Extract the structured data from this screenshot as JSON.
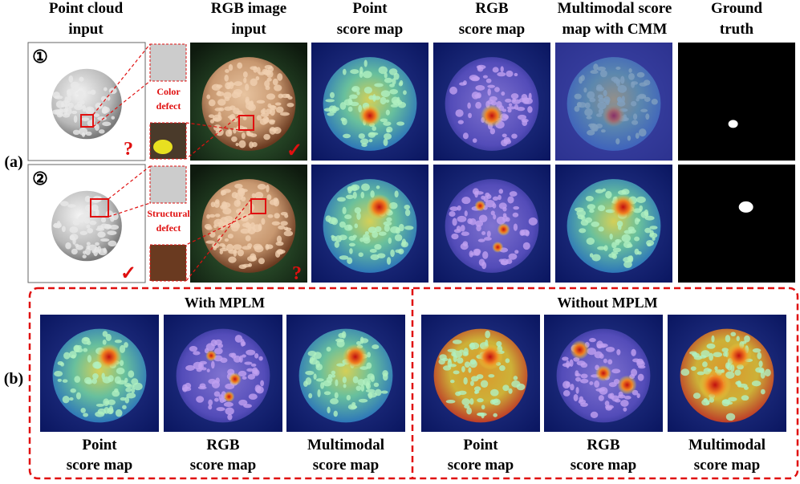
{
  "header": {
    "columns": [
      [
        "Point cloud",
        "input"
      ],
      [
        "RGB image",
        "input"
      ],
      [
        "Point",
        "score map"
      ],
      [
        "RGB",
        "score map"
      ],
      [
        "Multimodal score",
        "map with CMM"
      ],
      [
        "Ground",
        "truth"
      ]
    ]
  },
  "panel_a": {
    "label": "(a)",
    "rows": [
      {
        "index": "①",
        "defect": [
          "Color",
          "defect"
        ],
        "marks": [
          "?",
          "✓"
        ]
      },
      {
        "index": "②",
        "defect": [
          "Structural",
          "defect"
        ],
        "marks": [
          "✓",
          "?"
        ]
      }
    ]
  },
  "panel_b": {
    "label": "(b)",
    "groups": [
      {
        "title": "With MPLM",
        "captions": [
          [
            "Point",
            "score map"
          ],
          [
            "RGB",
            "score map"
          ],
          [
            "Multimodal",
            "score map"
          ]
        ]
      },
      {
        "title": "Without MPLM",
        "captions": [
          [
            "Point",
            "score map"
          ],
          [
            "RGB",
            "score map"
          ],
          [
            "Multimodal",
            "score map"
          ]
        ]
      }
    ]
  }
}
